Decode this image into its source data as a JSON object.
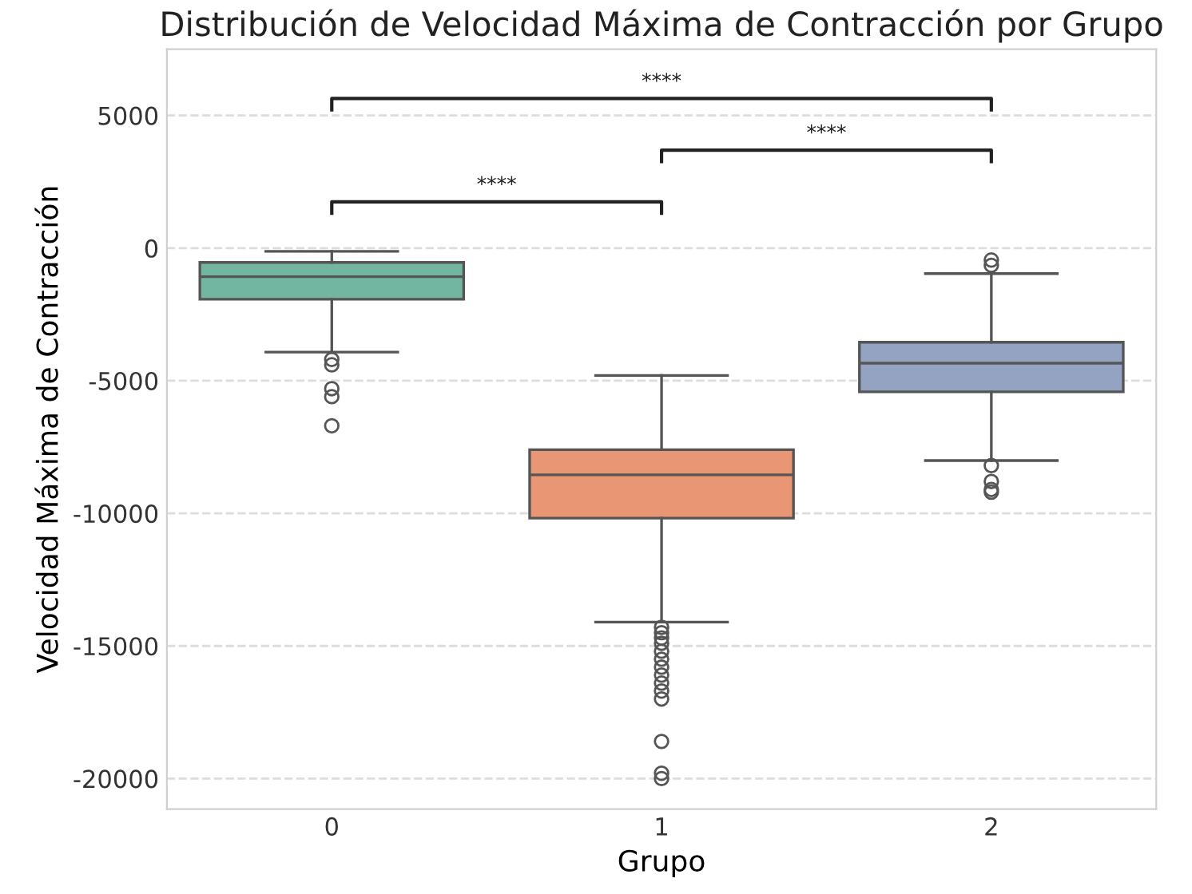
{
  "chart_data": {
    "type": "box",
    "title": "Distribución de Velocidad Máxima de Contracción por Grupo",
    "xlabel": "Grupo",
    "ylabel": "Velocidad Máxima de Contracción",
    "categories": [
      "0",
      "1",
      "2"
    ],
    "colors": [
      "#72b6a1",
      "#e99675",
      "#95a3c3"
    ],
    "boxes": [
      {
        "low": -120,
        "q1": -1930,
        "median": -1080,
        "q3": -540,
        "high": -3920,
        "outliers": [
          -4200,
          -4400,
          -5300,
          -5600,
          -6700
        ]
      },
      {
        "low": -4800,
        "q1": -10180,
        "median": -8550,
        "q3": -7600,
        "high": -14100,
        "outliers": [
          -14300,
          -14500,
          -14700,
          -14900,
          -15200,
          -15500,
          -15800,
          -16100,
          -16400,
          -16700,
          -17000,
          -18600,
          -19800,
          -20000
        ]
      },
      {
        "low": -960,
        "q1": -5420,
        "median": -4340,
        "q3": -3550,
        "high": -8010,
        "outliers": [
          -450,
          -650,
          -8200,
          -8800,
          -9100,
          -9200
        ]
      }
    ],
    "ylim": [
      -21150,
      7500
    ],
    "yticks": [
      -20000,
      -15000,
      -10000,
      -5000,
      0,
      5000
    ],
    "grid": "y",
    "annotations": [
      "****",
      "****",
      "****"
    ]
  }
}
